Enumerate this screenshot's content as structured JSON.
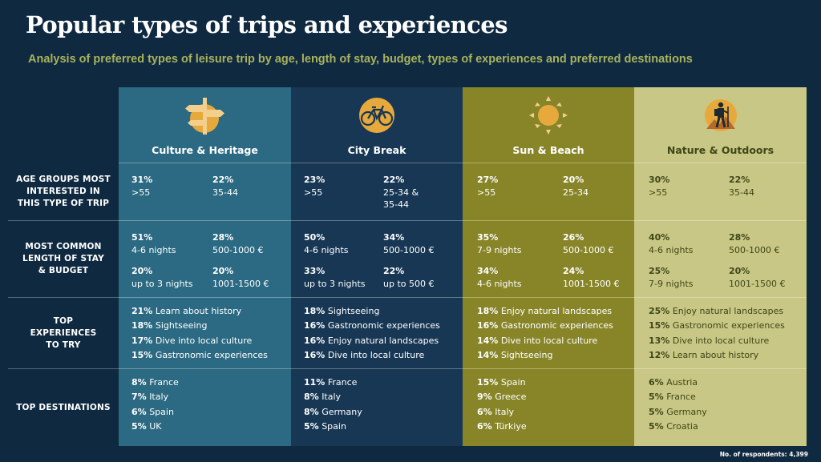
{
  "title": "Popular types of trips and experiences",
  "subtitle": "Analysis of preferred types of leisure trip by age, length of stay, budget, types of experiences and preferred destinations",
  "row_labels": {
    "age": "AGE GROUPS MOST INTERESTED IN THIS TYPE OF TRIP",
    "stay": "MOST COMMON LENGTH OF STAY & BUDGET",
    "experiences": "TOP EXPERIENCES TO TRY",
    "destinations": "TOP DESTINATIONS"
  },
  "columns": [
    {
      "name": "Culture & Heritage",
      "icon": "signpost-icon",
      "age": [
        {
          "pct": "31%",
          "label": ">55"
        },
        {
          "pct": "22%",
          "label": "35-44"
        }
      ],
      "stay": [
        {
          "pct": "51%",
          "label": "4-6 nights"
        },
        {
          "pct": "28%",
          "label": "500-1000 €"
        },
        {
          "pct": "20%",
          "label": "up to 3 nights"
        },
        {
          "pct": "20%",
          "label": "1001-1500 €"
        }
      ],
      "experiences": [
        {
          "pct": "21%",
          "label": "Learn about history"
        },
        {
          "pct": "18%",
          "label": "Sightseeing"
        },
        {
          "pct": "17%",
          "label": "Dive into local culture"
        },
        {
          "pct": "15%",
          "label": "Gastronomic experiences"
        }
      ],
      "destinations": [
        {
          "pct": "8%",
          "label": "France"
        },
        {
          "pct": "7%",
          "label": "Italy"
        },
        {
          "pct": "6%",
          "label": "Spain"
        },
        {
          "pct": "5%",
          "label": "UK"
        }
      ]
    },
    {
      "name": "City Break",
      "icon": "bicycle-icon",
      "age": [
        {
          "pct": "23%",
          "label": ">55"
        },
        {
          "pct": "22%",
          "label": "25-34 &\n35-44"
        }
      ],
      "stay": [
        {
          "pct": "50%",
          "label": "4-6 nights"
        },
        {
          "pct": "34%",
          "label": "500-1000 €"
        },
        {
          "pct": "33%",
          "label": "up to 3 nights"
        },
        {
          "pct": "22%",
          "label": "up to 500 €"
        }
      ],
      "experiences": [
        {
          "pct": "18%",
          "label": "Sightseeing"
        },
        {
          "pct": "16%",
          "label": "Gastronomic experiences"
        },
        {
          "pct": "16%",
          "label": "Enjoy natural landscapes"
        },
        {
          "pct": "16%",
          "label": "Dive into local culture"
        }
      ],
      "destinations": [
        {
          "pct": "11%",
          "label": "France"
        },
        {
          "pct": "8%",
          "label": "Italy"
        },
        {
          "pct": "8%",
          "label": "Germany"
        },
        {
          "pct": "5%",
          "label": "Spain"
        }
      ]
    },
    {
      "name": "Sun & Beach",
      "icon": "sun-icon",
      "age": [
        {
          "pct": "27%",
          "label": ">55"
        },
        {
          "pct": "20%",
          "label": "25-34"
        }
      ],
      "stay": [
        {
          "pct": "35%",
          "label": "7-9 nights"
        },
        {
          "pct": "26%",
          "label": "500-1000 €"
        },
        {
          "pct": "34%",
          "label": "4-6 nights"
        },
        {
          "pct": "24%",
          "label": "1001-1500 €"
        }
      ],
      "experiences": [
        {
          "pct": "18%",
          "label": "Enjoy natural landscapes"
        },
        {
          "pct": "16%",
          "label": "Gastronomic experiences"
        },
        {
          "pct": "14%",
          "label": "Dive into local culture"
        },
        {
          "pct": "14%",
          "label": "Sightseeing"
        }
      ],
      "destinations": [
        {
          "pct": "15%",
          "label": "Spain"
        },
        {
          "pct": "9%",
          "label": "Greece"
        },
        {
          "pct": "6%",
          "label": "Italy"
        },
        {
          "pct": "6%",
          "label": "Türkiye"
        }
      ]
    },
    {
      "name": "Nature & Outdoors",
      "icon": "hiker-icon",
      "age": [
        {
          "pct": "30%",
          "label": ">55"
        },
        {
          "pct": "22%",
          "label": "35-44"
        }
      ],
      "stay": [
        {
          "pct": "40%",
          "label": "4-6 nights"
        },
        {
          "pct": "28%",
          "label": "500-1000 €"
        },
        {
          "pct": "25%",
          "label": "7-9 nights"
        },
        {
          "pct": "20%",
          "label": "1001-1500 €"
        }
      ],
      "experiences": [
        {
          "pct": "25%",
          "label": "Enjoy natural landscapes"
        },
        {
          "pct": "15%",
          "label": "Gastronomic experiences"
        },
        {
          "pct": "13%",
          "label": "Dive into local culture"
        },
        {
          "pct": "12%",
          "label": "Learn about history"
        }
      ],
      "destinations": [
        {
          "pct": "6%",
          "label": "Austria"
        },
        {
          "pct": "5%",
          "label": "France"
        },
        {
          "pct": "5%",
          "label": "Germany"
        },
        {
          "pct": "5%",
          "label": "Croatia"
        }
      ]
    }
  ],
  "footer": "No. of respondents: 4,399"
}
